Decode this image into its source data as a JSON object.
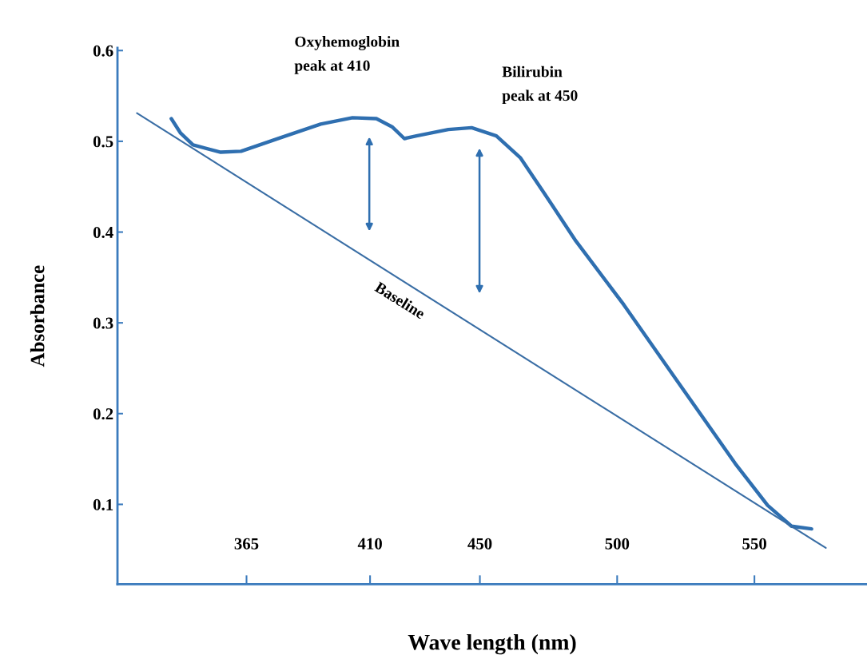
{
  "chart_data": {
    "type": "line",
    "xlabel": "Wave length (nm)",
    "ylabel": "Absorbance",
    "xlim": [
      318,
      591
    ],
    "ylim": [
      0.012,
      0.603
    ],
    "xticks": [
      365,
      410,
      450,
      500,
      550
    ],
    "yticks": [
      0.1,
      0.2,
      0.3,
      0.4,
      0.5,
      0.6
    ],
    "grid": false,
    "marker": "none",
    "line_style": "solid",
    "series": [
      {
        "color": "#2f6fb0",
        "x": [
          337.6,
          341,
          345.5,
          355.6,
          363,
          377.4,
          392,
          403.6,
          412.3,
          418,
          422.5,
          426.9,
          438.5,
          447,
          456,
          464.7,
          473.4,
          485,
          502.4,
          522.8,
          543,
          554.8,
          563.5,
          570.8
        ],
        "values": [
          0.525,
          0.509,
          0.496,
          0.488,
          0.489,
          0.504,
          0.519,
          0.526,
          0.525,
          0.516,
          0.503,
          0.506,
          0.513,
          0.515,
          0.506,
          0.482,
          0.443,
          0.39,
          0.32,
          0.232,
          0.145,
          0.099,
          0.076,
          0.073
        ]
      },
      {
        "color": "#3a6ea5",
        "x": [
          325.1,
          576
        ],
        "values": [
          0.531,
          0.052
        ]
      }
    ],
    "annotations": [
      "Oxyhemoglobin\npeak at 410",
      "Bilirubin\npeak at 450",
      "Baseline"
    ]
  }
}
